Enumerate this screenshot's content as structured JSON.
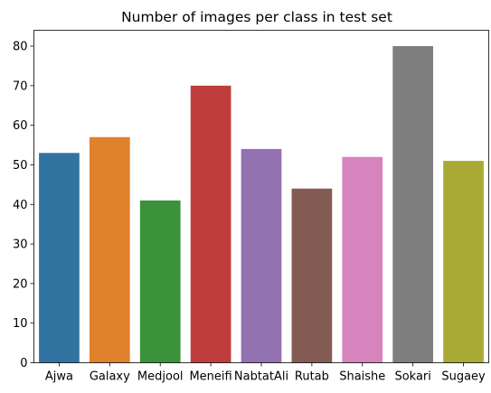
{
  "chart_data": {
    "type": "bar",
    "title": "Number of images per class in test set",
    "xlabel": "",
    "ylabel": "",
    "categories": [
      "Ajwa",
      "Galaxy",
      "Medjool",
      "Meneifi",
      "NabtatAli",
      "Rutab",
      "Shaishe",
      "Sokari",
      "Sugaey"
    ],
    "values": [
      53,
      57,
      41,
      70,
      54,
      44,
      52,
      80,
      51
    ],
    "colors": [
      "#3274a1",
      "#e1812c",
      "#3a923a",
      "#c03d3e",
      "#9372b2",
      "#845b53",
      "#d684bd",
      "#7f7f7f",
      "#a9aa35"
    ],
    "ylim": [
      0,
      84
    ],
    "yticks": [
      0,
      10,
      20,
      30,
      40,
      50,
      60,
      70,
      80
    ],
    "grid": false,
    "legend": "none"
  }
}
